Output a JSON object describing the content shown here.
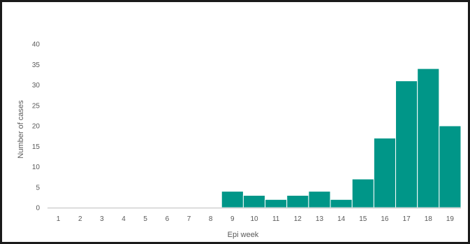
{
  "chart_data": {
    "type": "bar",
    "title": "",
    "xlabel": "Epi week",
    "ylabel": "Number of cases",
    "categories": [
      "1",
      "2",
      "3",
      "4",
      "5",
      "6",
      "7",
      "8",
      "9",
      "10",
      "11",
      "12",
      "13",
      "14",
      "15",
      "16",
      "17",
      "18",
      "19"
    ],
    "values": [
      0,
      0,
      0,
      0,
      0,
      0,
      0,
      0,
      4,
      3,
      2,
      3,
      4,
      2,
      7,
      17,
      31,
      34,
      20
    ],
    "ylim": [
      0,
      40
    ],
    "yticks": [
      "0",
      "5",
      "10",
      "15",
      "20",
      "25",
      "30",
      "35",
      "40"
    ],
    "grid": false,
    "legend": "none",
    "bar_color": "#009688",
    "bar_outline_color": "#ffffff",
    "axis_color": "#bfbfbf",
    "border_color": "#1a1a1a"
  }
}
